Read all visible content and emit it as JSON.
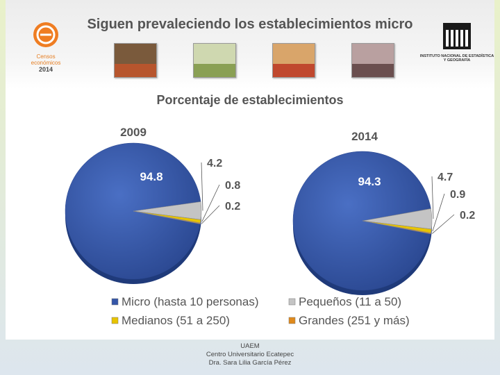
{
  "slide": {
    "title": "Siguen prevaleciendo los establecimientos micro",
    "logo_left": {
      "brand": "Censos económicos",
      "year": "2014"
    },
    "logo_right": {
      "name": "INEGI",
      "subtitle": "Instituto Nacional de Estadística y Geografía"
    }
  },
  "colors": {
    "micro": "#3556a8",
    "pequenos": "#c4c4c4",
    "medianos": "#e8c400",
    "grandes": "#e08a1c"
  },
  "chart_data": {
    "type": "pie",
    "title": "Porcentaje de establecimientos",
    "categories": [
      "Micro (hasta 10 personas)",
      "Pequeños (11 a 50)",
      "Medianos (51 a 250)",
      "Grandes (251 y más)"
    ],
    "series": [
      {
        "name": "2009",
        "values": [
          94.8,
          4.2,
          0.8,
          0.2
        ],
        "labels": [
          "94.8",
          "4.2",
          "0.8",
          "0.2"
        ]
      },
      {
        "name": "2014",
        "values": [
          94.3,
          4.7,
          0.9,
          0.2
        ],
        "labels": [
          "94.3",
          "4.7",
          "0.9",
          "0.2"
        ]
      }
    ],
    "legend_position": "bottom"
  },
  "footer": {
    "line1": "UAEM",
    "line2": "Centro Universitario Ecatepec",
    "line3": "Dra. Sara Lilia García Pérez"
  }
}
